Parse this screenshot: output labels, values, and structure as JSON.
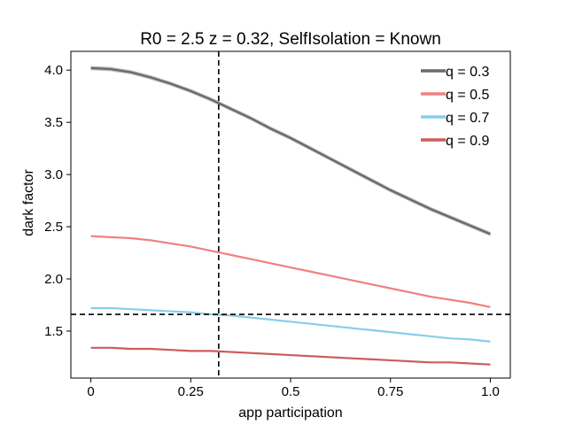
{
  "chart_data": {
    "type": "line",
    "title": "R0 = 2.5 z = 0.32, SelfIsolation = Known",
    "xlabel": "app participation",
    "ylabel": "dark factor",
    "xlim": [
      -0.05,
      1.05
    ],
    "ylim": [
      1.05,
      4.18
    ],
    "x_ticks": [
      0,
      0.25,
      0.5,
      0.75,
      1.0
    ],
    "x_tick_labels": [
      "0",
      "0.25",
      "0.5",
      "0.75",
      "1.0"
    ],
    "y_ticks": [
      1.5,
      2.0,
      2.5,
      3.0,
      3.5,
      4.0
    ],
    "y_tick_labels": [
      "1.5",
      "2.0",
      "2.5",
      "3.0",
      "3.5",
      "4.0"
    ],
    "grid": false,
    "legend_position": "top-right",
    "x": [
      0,
      0.05,
      0.1,
      0.15,
      0.2,
      0.25,
      0.3,
      0.35,
      0.4,
      0.45,
      0.5,
      0.55,
      0.6,
      0.65,
      0.7,
      0.75,
      0.8,
      0.85,
      0.9,
      0.95,
      1.0
    ],
    "series": [
      {
        "name": "q = 0.3",
        "color": "#696969",
        "values": [
          4.02,
          4.01,
          3.98,
          3.93,
          3.87,
          3.8,
          3.72,
          3.63,
          3.54,
          3.44,
          3.35,
          3.25,
          3.15,
          3.05,
          2.95,
          2.85,
          2.76,
          2.67,
          2.59,
          2.51,
          2.43
        ],
        "band": 0.02
      },
      {
        "name": "q = 0.5",
        "color": "#f08080",
        "values": [
          2.41,
          2.4,
          2.39,
          2.37,
          2.34,
          2.31,
          2.27,
          2.23,
          2.19,
          2.15,
          2.11,
          2.07,
          2.03,
          1.99,
          1.95,
          1.91,
          1.87,
          1.83,
          1.8,
          1.77,
          1.73
        ],
        "band": 0.0
      },
      {
        "name": "q = 0.7",
        "color": "#87ceeb",
        "values": [
          1.72,
          1.72,
          1.71,
          1.7,
          1.69,
          1.68,
          1.66,
          1.65,
          1.63,
          1.61,
          1.59,
          1.57,
          1.55,
          1.53,
          1.51,
          1.49,
          1.47,
          1.45,
          1.43,
          1.42,
          1.4
        ],
        "band": 0.0
      },
      {
        "name": "q = 0.9",
        "color": "#cd5c5c",
        "values": [
          1.34,
          1.34,
          1.33,
          1.33,
          1.32,
          1.31,
          1.31,
          1.3,
          1.29,
          1.28,
          1.27,
          1.26,
          1.25,
          1.24,
          1.23,
          1.22,
          1.21,
          1.2,
          1.2,
          1.19,
          1.18
        ],
        "band": 0.0
      }
    ],
    "reference_lines": [
      {
        "orientation": "vertical",
        "value": 0.32,
        "color": "#000000",
        "style": "dashed"
      },
      {
        "orientation": "horizontal",
        "value": 1.66,
        "color": "#000000",
        "style": "dashed"
      }
    ]
  }
}
